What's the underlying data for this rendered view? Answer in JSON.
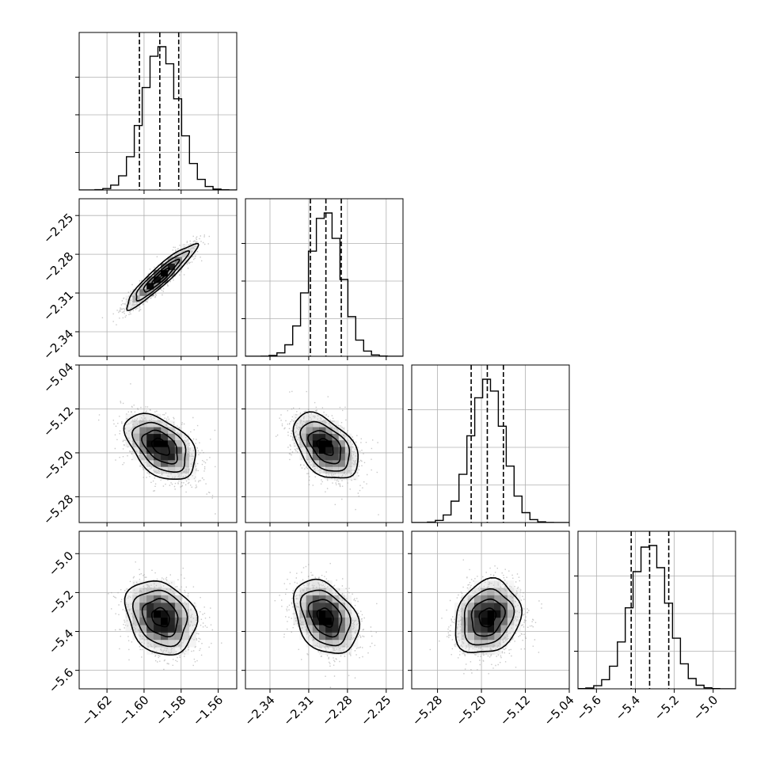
{
  "chart_data": {
    "type": "corner",
    "grid": true,
    "parameters": [
      {
        "range": [
          -1.635,
          -1.55
        ],
        "ticks": [
          -1.62,
          -1.6,
          -1.58,
          -1.56
        ],
        "tick_labels": [
          "−1.62",
          "−1.60",
          "−1.58",
          "−1.56"
        ],
        "mean": -1.591,
        "std": 0.0095,
        "quantiles": [
          -1.6025,
          -1.5915,
          -1.5813
        ]
      },
      {
        "range": [
          -2.359,
          -2.237
        ],
        "ticks": [
          -2.34,
          -2.31,
          -2.28,
          -2.25
        ],
        "tick_labels": [
          "−2.34",
          "−2.31",
          "−2.28",
          "−2.25"
        ],
        "mean": -2.297,
        "std": 0.0125,
        "quantiles": [
          -2.3087,
          -2.2967,
          -2.2848
        ]
      },
      {
        "range": [
          -5.327,
          -5.04
        ],
        "ticks": [
          -5.28,
          -5.2,
          -5.12,
          -5.04
        ],
        "tick_labels": [
          "−5.28",
          "−5.20",
          "−5.12",
          "−5.04"
        ],
        "mean": -5.189,
        "std": 0.03,
        "quantiles": [
          -5.2187,
          -5.1893,
          -5.16
        ]
      },
      {
        "range": [
          -5.695,
          -4.885
        ],
        "ticks": [
          -5.6,
          -5.4,
          -5.2,
          -5.0
        ],
        "tick_labels": [
          "−5.6",
          "−5.4",
          "−5.2",
          "−5.0"
        ],
        "mean": -5.328,
        "std": 0.095,
        "quantiles": [
          -5.4214,
          -5.3268,
          -5.2284
        ]
      }
    ],
    "pairs": [
      {
        "x": 0,
        "y": 1,
        "correlation": 0.93
      },
      {
        "x": 0,
        "y": 2,
        "correlation": -0.45
      },
      {
        "x": 1,
        "y": 2,
        "correlation": -0.45
      },
      {
        "x": 0,
        "y": 3,
        "correlation": -0.22
      },
      {
        "x": 1,
        "y": 3,
        "correlation": -0.33
      },
      {
        "x": 2,
        "y": 3,
        "correlation": 0.18
      }
    ],
    "contour_levels_sigma": [
      0.5,
      1.0,
      1.5,
      2.0
    ],
    "quantile_style": "dashed",
    "colors": {
      "line": "#000000",
      "grid": "#b0b0b0",
      "points": "#9a9a9a"
    }
  }
}
